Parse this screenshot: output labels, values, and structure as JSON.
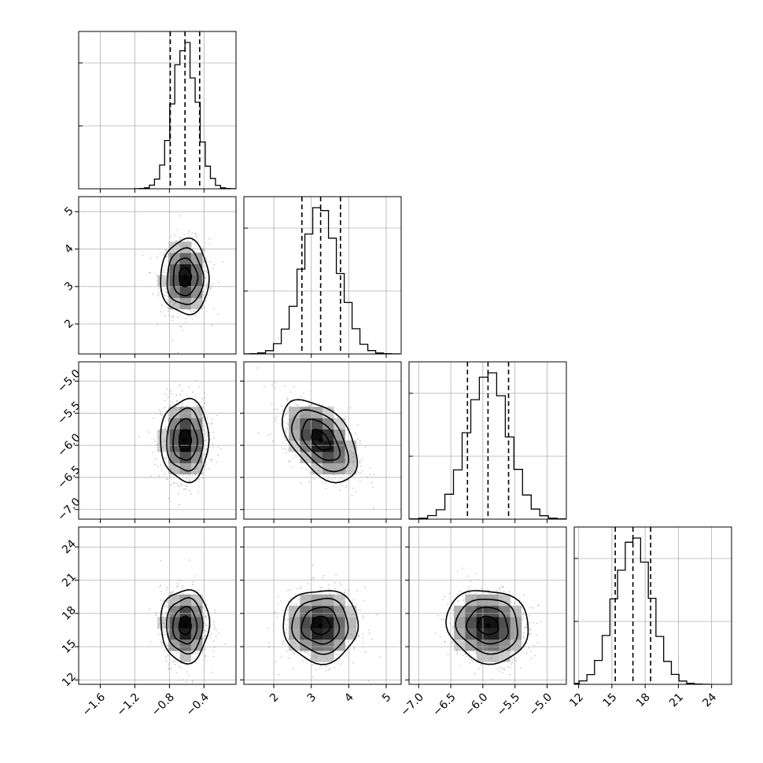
{
  "chart_data": {
    "type": "corner",
    "title": "",
    "parameters": [
      {
        "index": 0,
        "range": [
          -1.85,
          -0.03
        ],
        "ticks": [
          -1.6,
          -1.2,
          -0.8,
          -0.4
        ],
        "tick_labels": [
          "−1.6",
          "−1.2",
          "−0.8",
          "−0.4"
        ],
        "mean": -0.62,
        "sd": 0.14,
        "quantiles": [
          -0.79,
          -0.62,
          -0.45
        ]
      },
      {
        "index": 1,
        "range": [
          1.2,
          5.4
        ],
        "ticks": [
          2,
          3,
          4,
          5
        ],
        "tick_labels": [
          "2",
          "3",
          "4",
          "5"
        ],
        "mean": 3.25,
        "sd": 0.5,
        "quantiles": [
          2.75,
          3.25,
          3.78
        ]
      },
      {
        "index": 2,
        "range": [
          -7.15,
          -4.7
        ],
        "ticks": [
          -7.0,
          -6.5,
          -6.0,
          -5.5,
          -5.0
        ],
        "tick_labels": [
          "−7.0",
          "−6.5",
          "−6.0",
          "−5.5",
          "−5.0"
        ],
        "mean": -5.92,
        "sd": 0.32,
        "quantiles": [
          -6.24,
          -5.92,
          -5.6
        ]
      },
      {
        "index": 3,
        "range": [
          11.6,
          25.8
        ],
        "ticks": [
          12,
          15,
          18,
          21,
          24
        ],
        "tick_labels": [
          "12",
          "15",
          "18",
          "21",
          "24"
        ],
        "mean": 16.9,
        "sd": 1.65,
        "quantiles": [
          15.3,
          16.9,
          18.5
        ]
      }
    ],
    "correlations": [
      [
        1,
        0.0,
        0.0,
        0.0
      ],
      [
        0,
        1,
        -0.5,
        0.0
      ],
      [
        0,
        -0.5,
        1,
        -0.1
      ],
      [
        0,
        0,
        -0.1,
        1
      ]
    ],
    "histogram": {
      "style": "step",
      "bins": 20
    },
    "contour_levels_sigma": [
      0.5,
      1.0,
      1.5,
      2.0
    ],
    "colors": {
      "line": "#000000",
      "points": "#9a9a9a",
      "grid": "#b0b0b0",
      "density": "#000000"
    },
    "grid": true
  }
}
